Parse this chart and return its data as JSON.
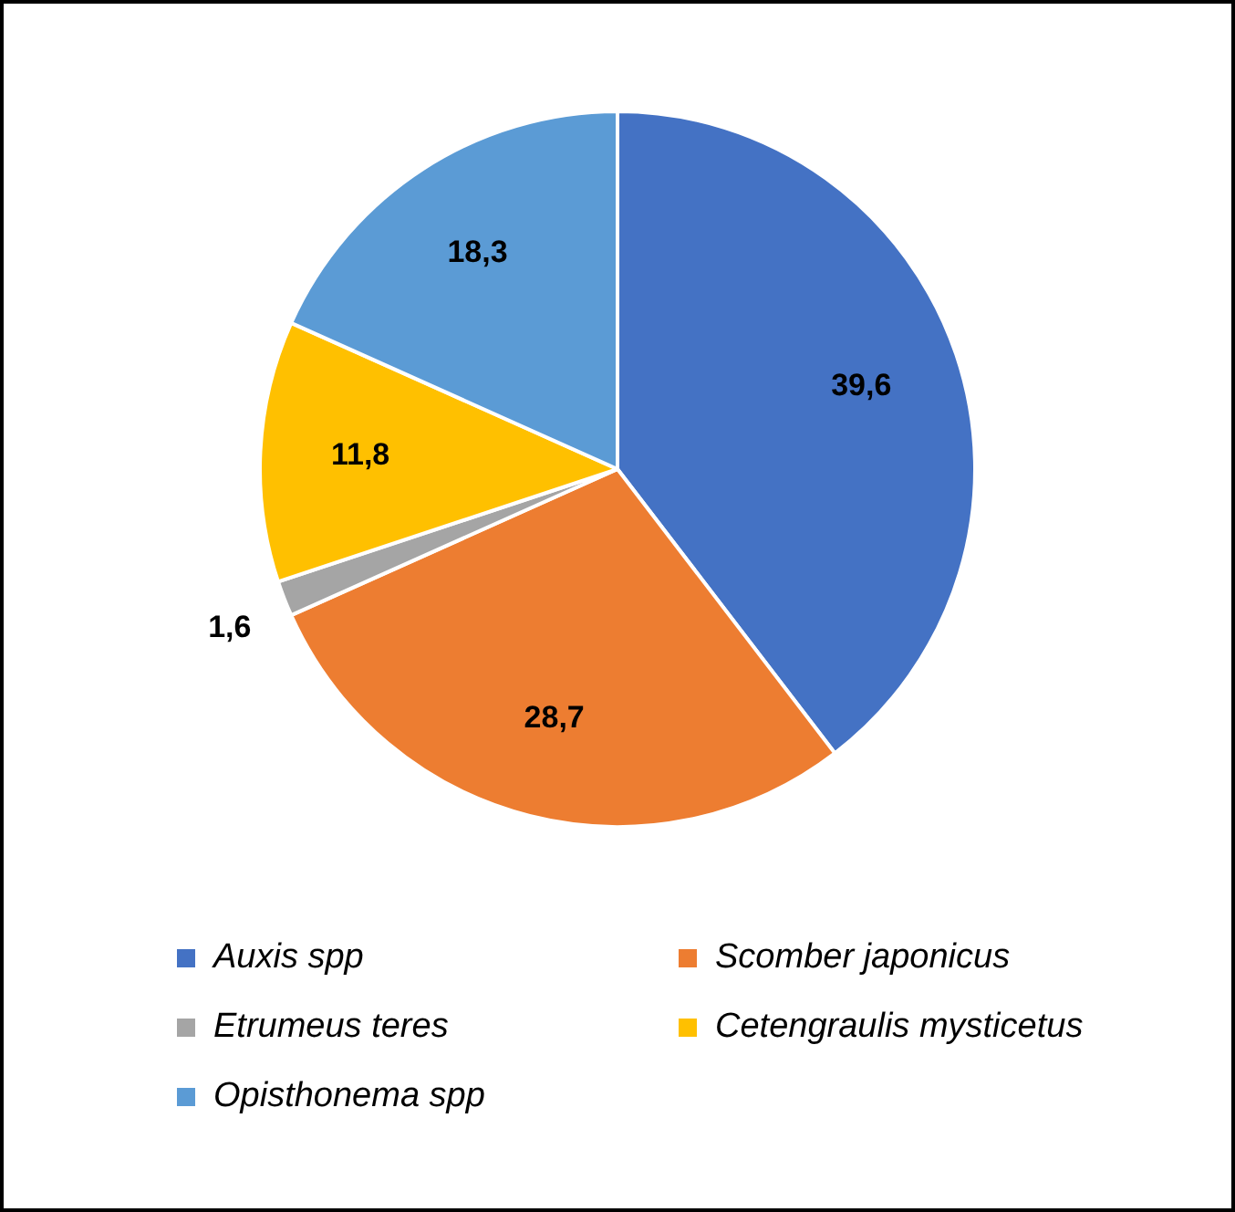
{
  "chart_data": {
    "type": "pie",
    "categories": [
      "Auxis spp",
      "Scomber japonicus",
      "Etrumeus teres",
      "Cetengraulis mysticetus",
      "Opisthonema spp"
    ],
    "values": [
      39.6,
      28.7,
      1.6,
      11.8,
      18.3
    ],
    "colors": [
      "#4472c4",
      "#ed7d31",
      "#a5a5a5",
      "#ffc000",
      "#5b9bd5"
    ],
    "value_labels": [
      "39,6",
      "28,7",
      "1,6",
      "11,8",
      "18,3"
    ],
    "legend": "bottom"
  }
}
